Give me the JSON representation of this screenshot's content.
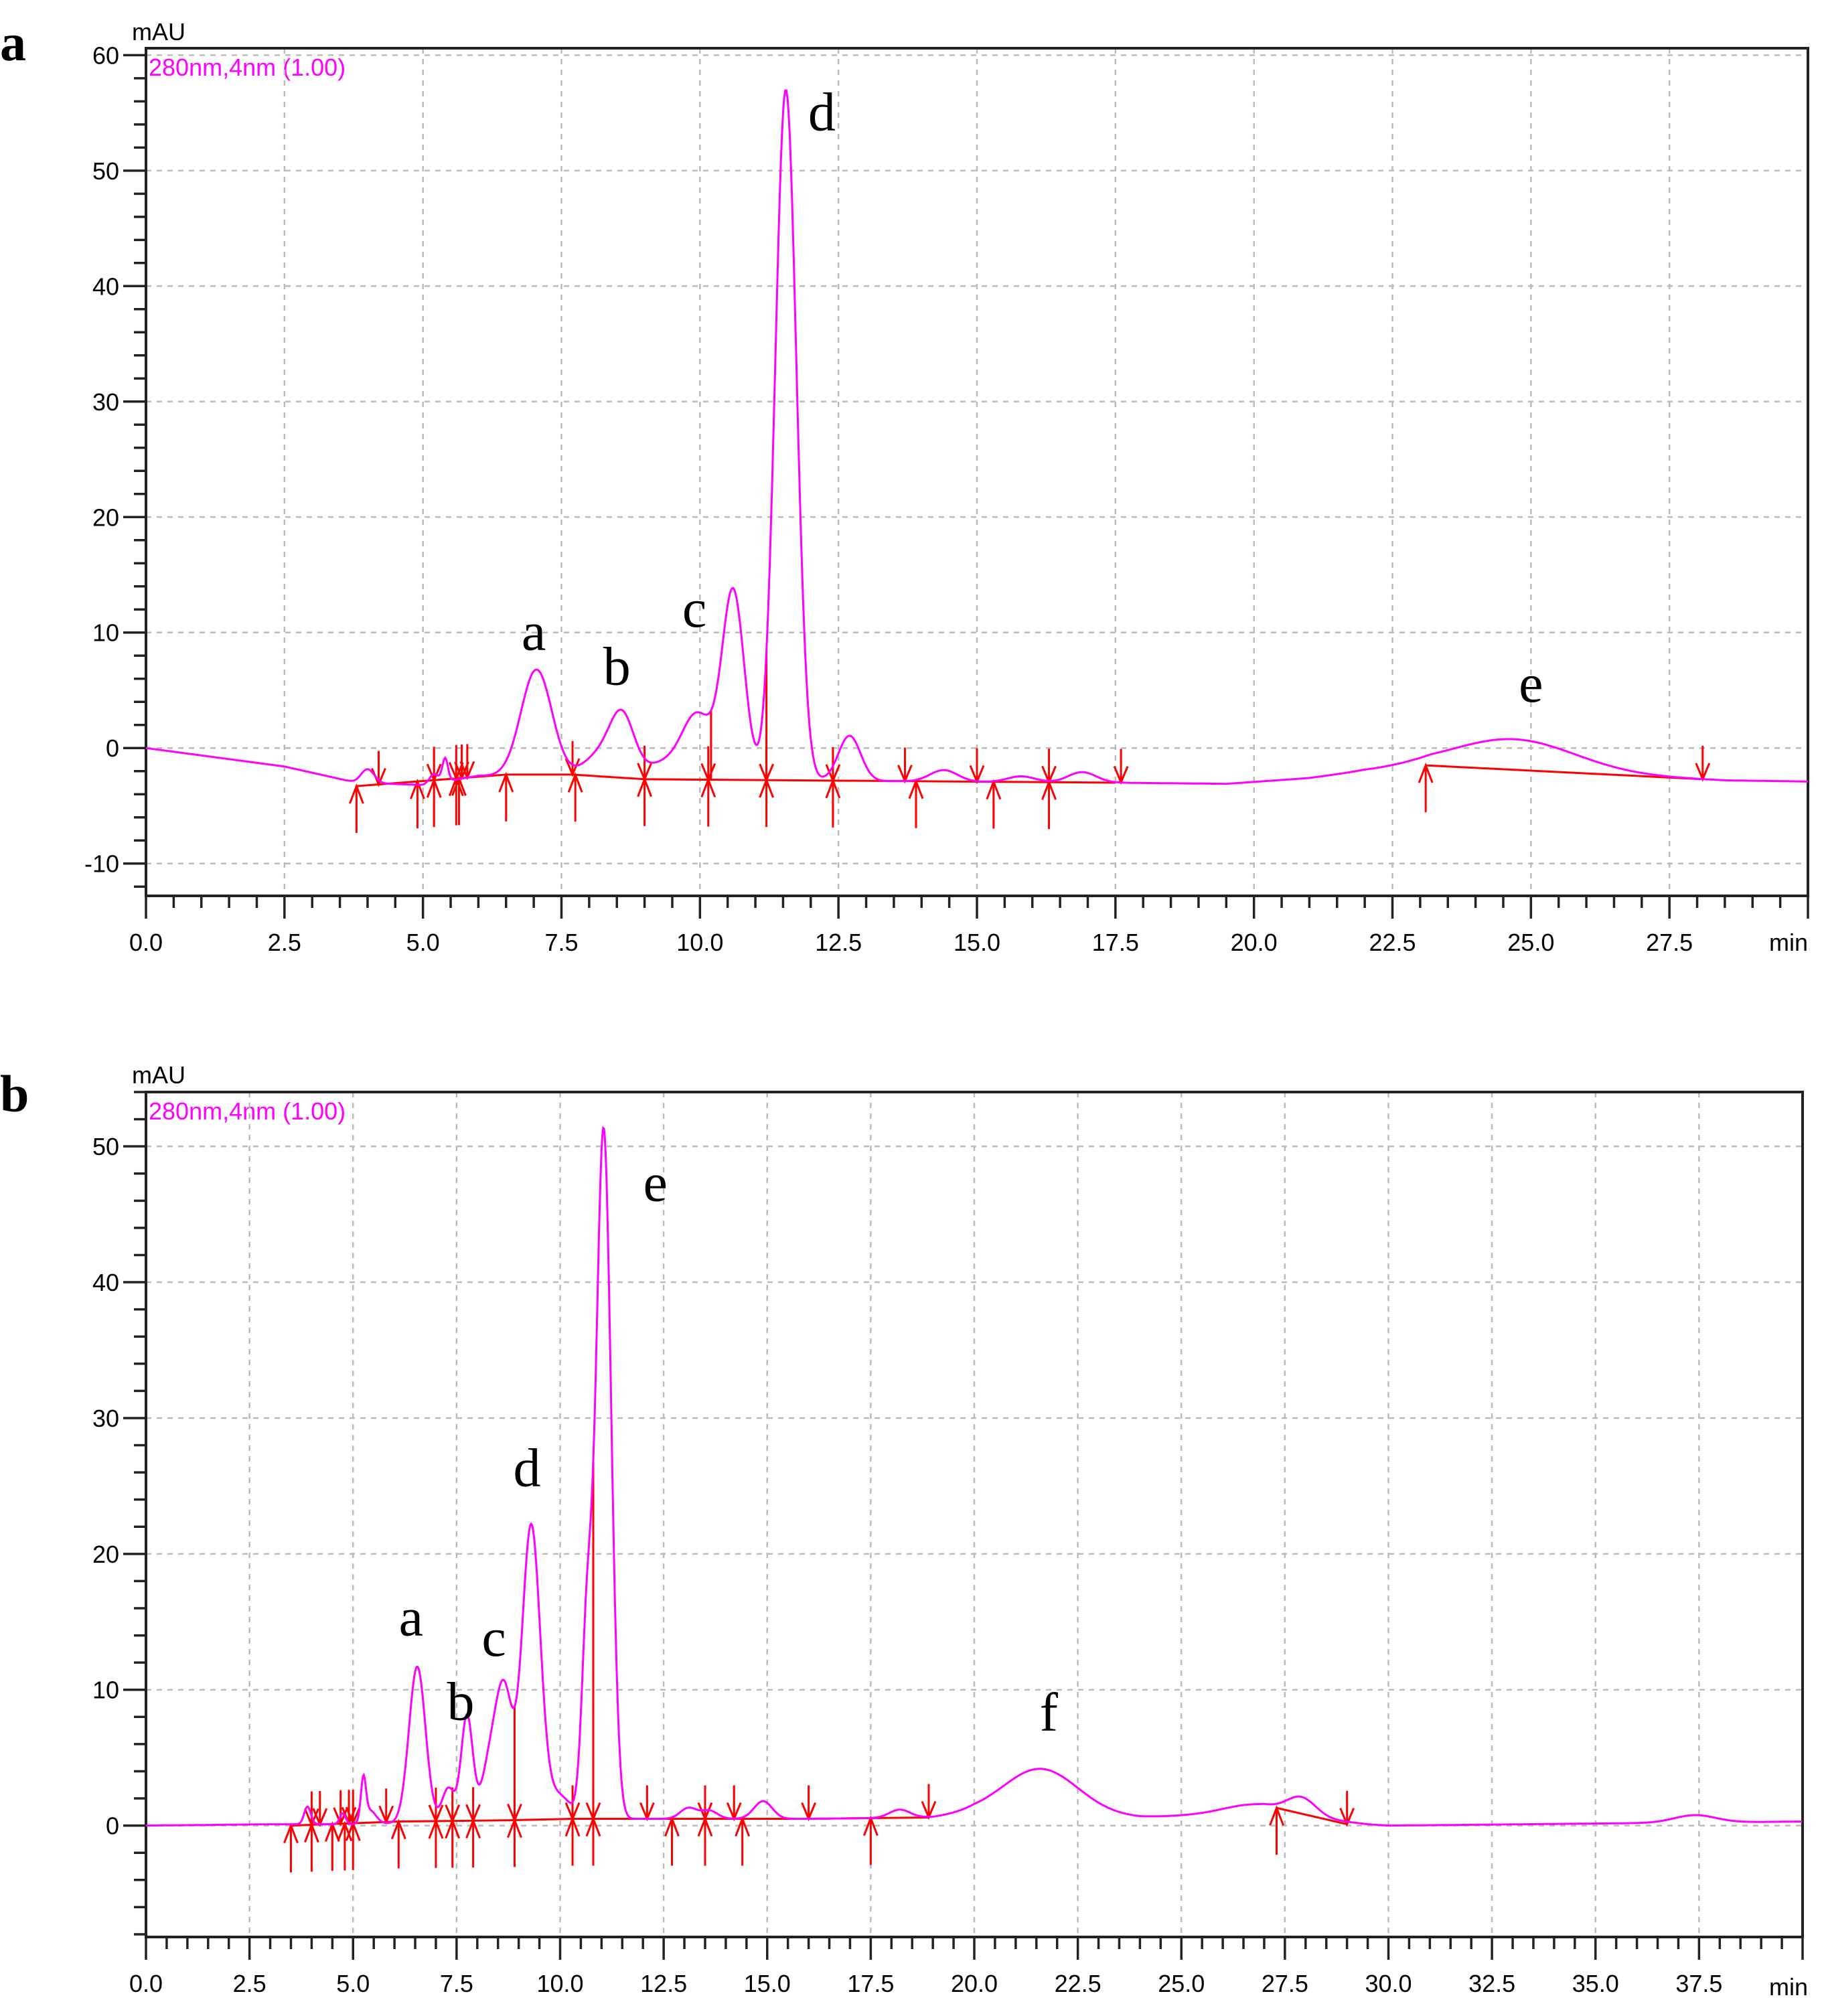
{
  "figure": {
    "colors": {
      "trace": "#ff00ff",
      "integration": "#ff0000",
      "grid": "#bbbbbb",
      "axis": "#000000"
    }
  },
  "chart_data": [
    {
      "type": "line",
      "panel": "a",
      "title": "",
      "detector_label": "280nm,4nm (1.00)",
      "xlabel": "min",
      "ylabel": "mAU",
      "xlim": [
        0,
        30
      ],
      "ylim": [
        -12.8,
        60.6
      ],
      "xticks": [
        "0.0",
        "2.5",
        "5.0",
        "7.5",
        "10.0",
        "12.5",
        "15.0",
        "17.5",
        "20.0",
        "22.5",
        "25.0",
        "27.5"
      ],
      "xtick_values": [
        0,
        2.5,
        5,
        7.5,
        10,
        12.5,
        15,
        17.5,
        20,
        22.5,
        25,
        27.5
      ],
      "yticks": [
        "-10",
        "0",
        "10",
        "20",
        "30",
        "40",
        "50",
        "60"
      ],
      "ytick_values": [
        -10,
        0,
        10,
        20,
        30,
        40,
        50,
        60
      ],
      "grid": true,
      "baseline": [
        [
          0,
          0
        ],
        [
          2.5,
          -1.6
        ],
        [
          3.8,
          -3.0
        ],
        [
          5.0,
          -3.2
        ],
        [
          6.0,
          -2.4
        ],
        [
          8.0,
          -2.6
        ],
        [
          10,
          -2.7
        ],
        [
          14,
          -2.9
        ],
        [
          17.5,
          -3.0
        ],
        [
          19.5,
          -3.1
        ],
        [
          21,
          -2.6
        ],
        [
          22,
          -2.0
        ],
        [
          23.2,
          -1.6
        ],
        [
          28.5,
          -2.8
        ],
        [
          30,
          -2.9
        ]
      ],
      "peaks": [
        {
          "t": 4.0,
          "h": 1.2,
          "w": 0.12
        },
        {
          "t": 5.2,
          "h": 0.8,
          "w": 0.08
        },
        {
          "t": 5.4,
          "h": 2.0,
          "w": 0.05
        },
        {
          "t": 7.05,
          "h": 9.3,
          "w": 0.28
        },
        {
          "t": 8.2,
          "h": 2.0,
          "w": 0.3
        },
        {
          "t": 8.6,
          "h": 5.0,
          "w": 0.22
        },
        {
          "t": 9.3,
          "h": 1.2,
          "w": 0.3
        },
        {
          "t": 9.95,
          "h": 5.6,
          "w": 0.28
        },
        {
          "t": 10.6,
          "h": 16.2,
          "w": 0.2
        },
        {
          "t": 11.55,
          "h": 59.8,
          "w": 0.19
        },
        {
          "t": 12.7,
          "h": 3.9,
          "w": 0.2
        },
        {
          "t": 14.4,
          "h": 1.0,
          "w": 0.25
        },
        {
          "t": 15.8,
          "h": 0.5,
          "w": 0.25
        },
        {
          "t": 16.9,
          "h": 0.9,
          "w": 0.25
        },
        {
          "t": 24.7,
          "h": 2.7,
          "w": 1.1
        }
      ],
      "annotations": [
        {
          "text": "a",
          "t": 7.0,
          "y": 8.5
        },
        {
          "text": "b",
          "t": 8.5,
          "y": 5.5
        },
        {
          "text": "c",
          "t": 9.9,
          "y": 10.5
        },
        {
          "text": "d",
          "t": 12.2,
          "y": 53.5
        },
        {
          "text": "e",
          "t": 25.0,
          "y": 4.0
        }
      ],
      "peak_summary": [
        {
          "label": "a",
          "retention_min": 7.0,
          "height_mAU": 7.0
        },
        {
          "label": "b",
          "retention_min": 8.5,
          "height_mAU": 3.8
        },
        {
          "label": "c",
          "retention_min": 10.6,
          "height_mAU": 14.3
        },
        {
          "label": "d",
          "retention_min": 11.5,
          "height_mAU": 57.3
        },
        {
          "label": "e",
          "retention_min": 24.7,
          "height_mAU": 0.8
        }
      ],
      "integration_baseline": [
        [
          3.8,
          -3.3
        ],
        [
          6.5,
          -2.3
        ],
        [
          7.7,
          -2.3
        ],
        [
          9.0,
          -2.7
        ],
        [
          17.5,
          -3.0
        ]
      ],
      "integration_baseline2": [
        [
          23.1,
          -1.5
        ],
        [
          28.1,
          -2.7
        ]
      ],
      "marks_up": [
        3.8,
        4.9,
        5.2,
        5.6,
        5.65,
        6.5,
        7.75,
        9.0,
        10.15,
        11.2,
        12.4,
        13.9,
        15.3,
        16.3,
        23.1
      ],
      "marks_down": [
        4.2,
        5.2,
        5.6,
        5.7,
        5.8,
        7.7,
        9.0,
        10.15,
        11.2,
        12.4,
        13.7,
        15.0,
        16.3,
        17.6,
        28.1
      ],
      "drop_lines": [
        10.2,
        11.2
      ]
    },
    {
      "type": "line",
      "panel": "b",
      "title": "",
      "detector_label": "280nm,4nm (1.00)",
      "xlabel": "min",
      "ylabel": "mAU",
      "xlim": [
        0,
        40
      ],
      "ylim": [
        -8.2,
        54
      ],
      "xticks": [
        "0.0",
        "2.5",
        "5.0",
        "7.5",
        "10.0",
        "12.5",
        "15.0",
        "17.5",
        "20.0",
        "22.5",
        "25.0",
        "27.5",
        "30.0",
        "32.5",
        "35.0",
        "37.5"
      ],
      "xtick_values": [
        0,
        2.5,
        5,
        7.5,
        10,
        12.5,
        15,
        17.5,
        20,
        22.5,
        25,
        27.5,
        30,
        32.5,
        35,
        37.5
      ],
      "yticks": [
        "0",
        "10",
        "20",
        "30",
        "40",
        "50"
      ],
      "ytick_values": [
        0,
        10,
        20,
        30,
        40,
        50
      ],
      "grid": true,
      "baseline": [
        [
          0,
          0
        ],
        [
          3,
          0.1
        ],
        [
          5,
          0.1
        ],
        [
          8,
          0.3
        ],
        [
          10,
          0.45
        ],
        [
          12,
          0.5
        ],
        [
          16,
          0.5
        ],
        [
          19,
          0.6
        ],
        [
          20,
          0.9
        ],
        [
          24,
          0.6
        ],
        [
          27,
          1.0
        ],
        [
          29.5,
          0.1
        ],
        [
          30,
          0.0
        ],
        [
          40,
          0.3
        ]
      ],
      "peaks": [
        {
          "t": 3.9,
          "h": 1.3,
          "w": 0.08
        },
        {
          "t": 4.75,
          "h": 0.8,
          "w": 0.07
        },
        {
          "t": 5.25,
          "h": 3.0,
          "w": 0.06
        },
        {
          "t": 5.4,
          "h": 1.0,
          "w": 0.15
        },
        {
          "t": 6.55,
          "h": 11.5,
          "w": 0.2
        },
        {
          "t": 7.3,
          "h": 2.5,
          "w": 0.15
        },
        {
          "t": 7.75,
          "h": 7.8,
          "w": 0.14
        },
        {
          "t": 8.3,
          "h": 4.0,
          "w": 0.2
        },
        {
          "t": 8.65,
          "h": 9.2,
          "w": 0.2
        },
        {
          "t": 9.3,
          "h": 21.6,
          "w": 0.22
        },
        {
          "t": 9.95,
          "h": 1.8,
          "w": 0.3
        },
        {
          "t": 10.65,
          "h": 13.6,
          "w": 0.13
        },
        {
          "t": 11.05,
          "h": 50.8,
          "w": 0.18
        },
        {
          "t": 13.1,
          "h": 0.8,
          "w": 0.2
        },
        {
          "t": 13.6,
          "h": 0.6,
          "w": 0.2
        },
        {
          "t": 14.9,
          "h": 1.3,
          "w": 0.22
        },
        {
          "t": 18.2,
          "h": 0.6,
          "w": 0.25
        },
        {
          "t": 21.6,
          "h": 3.4,
          "w": 0.9
        },
        {
          "t": 26.7,
          "h": 0.6,
          "w": 0.7
        },
        {
          "t": 27.9,
          "h": 1.3,
          "w": 0.35
        },
        {
          "t": 37.4,
          "h": 0.55,
          "w": 0.5
        }
      ],
      "annotations": [
        {
          "text": "a",
          "t": 6.4,
          "y": 14.0
        },
        {
          "text": "b",
          "t": 7.6,
          "y": 7.8
        },
        {
          "text": "c",
          "t": 8.4,
          "y": 12.5
        },
        {
          "text": "d",
          "t": 9.2,
          "y": 25.0
        },
        {
          "text": "e",
          "t": 12.3,
          "y": 46.0
        },
        {
          "text": "f",
          "t": 21.8,
          "y": 7.0
        }
      ],
      "peak_summary": [
        {
          "label": "a",
          "retention_min": 6.6,
          "height_mAU": 11.5
        },
        {
          "label": "b",
          "retention_min": 7.75,
          "height_mAU": 8.2
        },
        {
          "label": "c",
          "retention_min": 8.6,
          "height_mAU": 10.5
        },
        {
          "label": "d",
          "retention_min": 9.3,
          "height_mAU": 22.0
        },
        {
          "label": "e",
          "retention_min": 11.1,
          "height_mAU": 51.2
        },
        {
          "label": "f",
          "retention_min": 21.6,
          "height_mAU": 4.2
        }
      ],
      "integration_baseline": [
        [
          3.5,
          0.0
        ],
        [
          6.1,
          0.3
        ],
        [
          8.9,
          0.4
        ],
        [
          10.3,
          0.5
        ],
        [
          12.0,
          0.5
        ],
        [
          16.0,
          0.5
        ],
        [
          18.9,
          0.6
        ]
      ],
      "integration_baseline2": [
        [
          27.3,
          1.3
        ],
        [
          29.0,
          0.1
        ]
      ],
      "marks_up": [
        3.5,
        4.0,
        4.5,
        4.8,
        5.0,
        6.1,
        7.0,
        7.4,
        7.9,
        8.9,
        10.3,
        10.8,
        12.7,
        13.5,
        14.4,
        17.5,
        27.3
      ],
      "marks_down": [
        4.0,
        4.2,
        4.7,
        4.9,
        5.0,
        5.8,
        7.0,
        7.4,
        7.9,
        8.9,
        10.3,
        10.8,
        12.1,
        13.5,
        14.2,
        16.0,
        18.9,
        29.0
      ],
      "drop_lines": [
        8.9,
        10.8
      ]
    }
  ],
  "panels": {
    "a": {
      "letter": "a",
      "ylabel": "mAU",
      "xunit": "min",
      "detector": "280nm,4nm (1.00)"
    },
    "b": {
      "letter": "b",
      "ylabel": "mAU",
      "xunit": "min",
      "detector": "280nm,4nm (1.00)"
    }
  }
}
